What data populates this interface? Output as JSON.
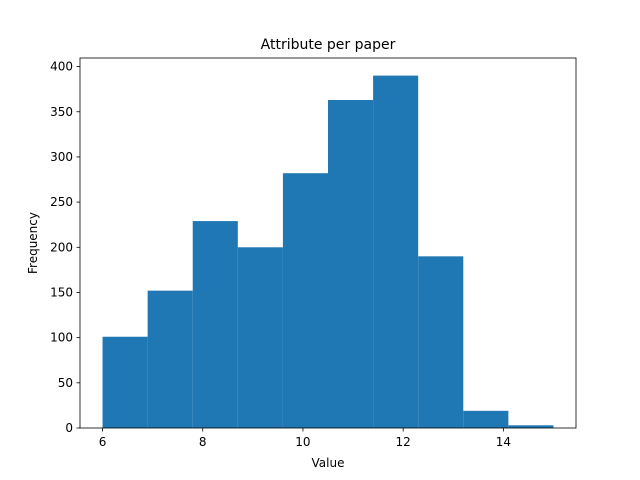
{
  "chart_data": {
    "type": "bar",
    "title": "Attribute per paper",
    "xlabel": "Value",
    "ylabel": "Frequency",
    "xlim": [
      5.55,
      15.45
    ],
    "ylim": [
      0,
      409.5
    ],
    "grid": false,
    "bar_color": "#1f77b4",
    "bins": [
      {
        "x0": 6.0,
        "x1": 6.9,
        "count": 101
      },
      {
        "x0": 6.9,
        "x1": 7.8,
        "count": 152
      },
      {
        "x0": 7.8,
        "x1": 8.7,
        "count": 229
      },
      {
        "x0": 8.7,
        "x1": 9.6,
        "count": 200
      },
      {
        "x0": 9.6,
        "x1": 10.5,
        "count": 282
      },
      {
        "x0": 10.5,
        "x1": 11.4,
        "count": 363
      },
      {
        "x0": 11.4,
        "x1": 12.3,
        "count": 390
      },
      {
        "x0": 12.3,
        "x1": 13.2,
        "count": 190
      },
      {
        "x0": 13.2,
        "x1": 14.1,
        "count": 19
      },
      {
        "x0": 14.1,
        "x1": 15.0,
        "count": 3
      }
    ],
    "x_ticks": [
      {
        "value": 6,
        "label": "6"
      },
      {
        "value": 8,
        "label": "8"
      },
      {
        "value": 10,
        "label": "10"
      },
      {
        "value": 12,
        "label": "12"
      },
      {
        "value": 14,
        "label": "14"
      }
    ],
    "y_ticks": [
      {
        "value": 0,
        "label": "0"
      },
      {
        "value": 50,
        "label": "50"
      },
      {
        "value": 100,
        "label": "100"
      },
      {
        "value": 150,
        "label": "150"
      },
      {
        "value": 200,
        "label": "200"
      },
      {
        "value": 250,
        "label": "250"
      },
      {
        "value": 300,
        "label": "300"
      },
      {
        "value": 350,
        "label": "350"
      },
      {
        "value": 400,
        "label": "400"
      }
    ]
  }
}
